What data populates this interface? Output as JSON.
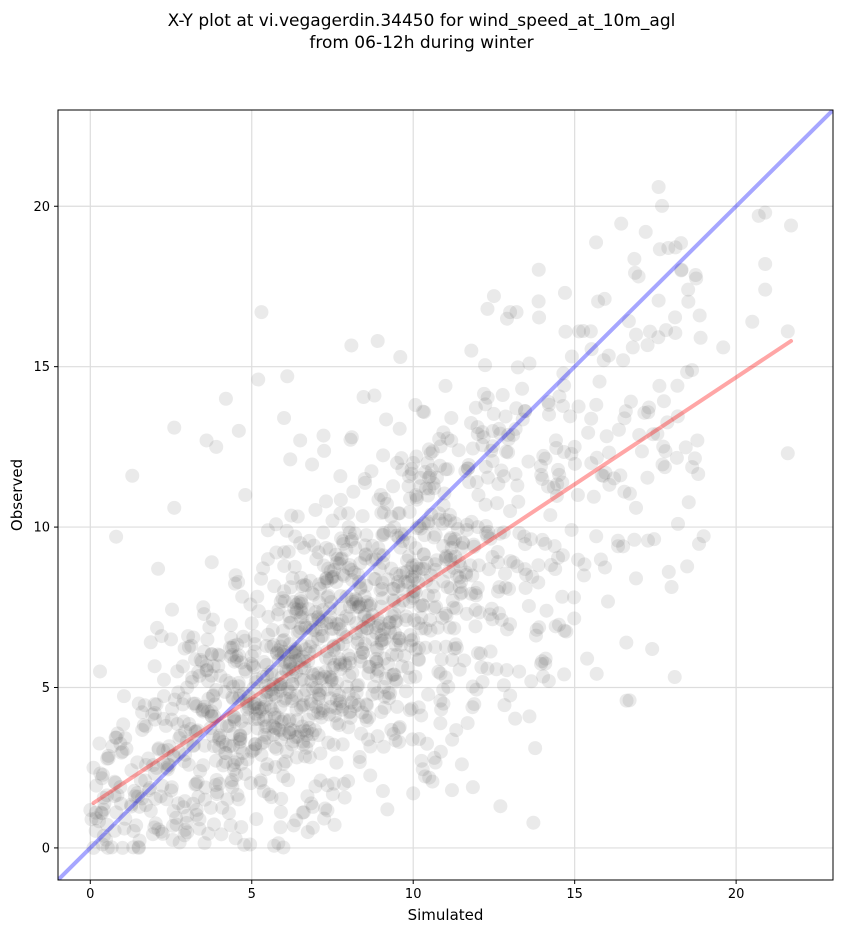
{
  "chart_data": {
    "type": "scatter",
    "title": "X-Y plot at vi.vegagerdin.34450 for wind_speed_at_10m_agl",
    "subtitle": "from 06-12h during winter",
    "xlabel": "Simulated",
    "ylabel": "Observed",
    "xlim": [
      -1,
      23
    ],
    "ylim": [
      -1,
      23
    ],
    "xticks": [
      0,
      5,
      10,
      15,
      20
    ],
    "yticks": [
      0,
      5,
      10,
      15,
      20
    ],
    "grid": true,
    "legend": "none",
    "points_color": "#555555",
    "points_approx_count": 1500,
    "points_sample": [
      [
        0.3,
        5.5
      ],
      [
        0.8,
        9.7
      ],
      [
        1.3,
        11.6
      ],
      [
        2.1,
        8.7
      ],
      [
        2.6,
        10.6
      ],
      [
        2.6,
        13.1
      ],
      [
        3.6,
        12.7
      ],
      [
        3.9,
        12.5
      ],
      [
        4.2,
        14.0
      ],
      [
        4.6,
        13.0
      ],
      [
        4.8,
        11.0
      ],
      [
        5.2,
        14.6
      ],
      [
        5.3,
        16.7
      ],
      [
        5.5,
        9.9
      ],
      [
        6.0,
        13.4
      ],
      [
        6.1,
        14.7
      ],
      [
        6.5,
        12.7
      ],
      [
        7.3,
        10.8
      ],
      [
        8.1,
        12.8
      ],
      [
        8.8,
        14.1
      ],
      [
        8.9,
        15.8
      ],
      [
        9.6,
        15.3
      ],
      [
        10.3,
        13.6
      ],
      [
        11.0,
        14.4
      ],
      [
        11.8,
        15.5
      ],
      [
        12.3,
        16.8
      ],
      [
        12.5,
        17.2
      ],
      [
        13.0,
        16.7
      ],
      [
        13.2,
        16.7
      ],
      [
        13.6,
        15.1
      ],
      [
        14.7,
        17.3
      ],
      [
        15.5,
        16.1
      ],
      [
        15.9,
        15.2
      ],
      [
        16.5,
        15.2
      ],
      [
        16.8,
        15.6
      ],
      [
        16.9,
        16.0
      ],
      [
        17.2,
        19.2
      ],
      [
        17.6,
        20.6
      ],
      [
        17.9,
        18.7
      ],
      [
        18.3,
        18.0
      ],
      [
        18.2,
        10.1
      ],
      [
        18.8,
        12.7
      ],
      [
        18.9,
        15.9
      ],
      [
        19.6,
        15.6
      ],
      [
        20.5,
        16.4
      ],
      [
        20.7,
        19.7
      ],
      [
        20.9,
        19.8
      ],
      [
        20.9,
        18.2
      ],
      [
        20.9,
        17.4
      ],
      [
        21.6,
        12.3
      ],
      [
        21.7,
        19.4
      ],
      [
        21.6,
        16.1
      ],
      [
        16.5,
        9.4
      ],
      [
        16.6,
        6.4
      ],
      [
        16.7,
        4.6
      ],
      [
        17.4,
        6.2
      ],
      [
        16.9,
        8.4
      ],
      [
        16.9,
        10.6
      ],
      [
        14.2,
        5.2
      ],
      [
        14.1,
        5.9
      ],
      [
        13.6,
        4.1
      ],
      [
        12.7,
        1.3
      ],
      [
        11.2,
        1.8
      ],
      [
        10.0,
        1.7
      ],
      [
        9.2,
        1.2
      ],
      [
        0.1,
        0.0
      ],
      [
        1.0,
        0.0
      ],
      [
        1.5,
        0.0
      ],
      [
        4.5,
        0.3
      ],
      [
        6.3,
        0.7
      ],
      [
        1.7,
        2.1
      ],
      [
        2.4,
        2.6
      ],
      [
        3.4,
        2.4
      ],
      [
        4.1,
        3.3
      ],
      [
        5.3,
        2.9
      ],
      [
        6.2,
        3.7
      ],
      [
        7.0,
        4.4
      ],
      [
        8.0,
        4.8
      ],
      [
        9.1,
        5.9
      ],
      [
        10.0,
        6.5
      ],
      [
        11.0,
        7.3
      ],
      [
        12.0,
        8.1
      ],
      [
        13.1,
        8.9
      ],
      [
        14.0,
        9.6
      ],
      [
        15.1,
        11.0
      ],
      [
        2.0,
        4.0
      ],
      [
        3.0,
        5.0
      ],
      [
        4.0,
        6.0
      ],
      [
        5.0,
        7.0
      ],
      [
        6.0,
        8.0
      ],
      [
        7.0,
        9.0
      ],
      [
        8.0,
        10.0
      ],
      [
        9.0,
        11.0
      ],
      [
        10.0,
        12.0
      ],
      [
        11.0,
        11.8
      ],
      [
        12.0,
        12.9
      ],
      [
        3.0,
        1.0
      ],
      [
        4.0,
        2.0
      ],
      [
        5.0,
        3.0
      ],
      [
        6.0,
        4.0
      ],
      [
        7.0,
        5.0
      ],
      [
        8.0,
        6.0
      ],
      [
        9.0,
        7.0
      ],
      [
        10.0,
        8.0
      ],
      [
        11.0,
        9.0
      ],
      [
        12.0,
        10.0
      ],
      [
        13.0,
        10.5
      ],
      [
        14.0,
        11.5
      ],
      [
        15.0,
        12.5
      ],
      [
        1.0,
        3.0
      ],
      [
        1.5,
        4.5
      ],
      [
        2.5,
        6.5
      ],
      [
        3.5,
        7.5
      ],
      [
        4.5,
        8.5
      ],
      [
        5.5,
        9.0
      ],
      [
        6.5,
        9.5
      ],
      [
        7.5,
        10.2
      ],
      [
        8.5,
        11.5
      ],
      [
        9.5,
        12.0
      ],
      [
        10.5,
        11.2
      ]
    ],
    "lines": [
      {
        "color": "#0000ff",
        "x": [
          -1,
          23
        ],
        "y": [
          -1,
          23
        ]
      },
      {
        "color": "#ff0000",
        "x": [
          0.1,
          21.7
        ],
        "y": [
          1.4,
          15.8
        ]
      }
    ]
  }
}
